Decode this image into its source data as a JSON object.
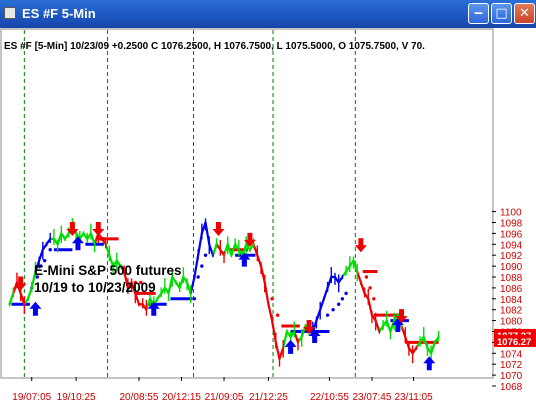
{
  "window": {
    "title": "ES #F 5-Min",
    "minimize_glyph": "‒",
    "maximize_glyph": "□",
    "close_glyph": "✕"
  },
  "info_line": "ES #F [5-Min] 10/23/09 +0.2500 C 1076.2500, H 1076.7500, L 1075.5000, O 1075.7500, V 70.",
  "annotation": {
    "line1": "E-Mini S&P 500 futures",
    "line2": "10/19 to 10/23/2009"
  },
  "colors": {
    "up_trend": "#0000ee",
    "down_trend": "#ee0000",
    "neutral": "#00dd00",
    "session_divider": "#008000",
    "axis_labels": "#cc0000"
  },
  "chart_data": {
    "type": "line",
    "ylim": [
      1068,
      1100
    ],
    "yticks": [
      1068,
      1070,
      1072,
      1074,
      1076,
      1078,
      1080,
      1082,
      1084,
      1086,
      1088,
      1090,
      1092,
      1094,
      1096,
      1098,
      1100
    ],
    "xlim": [
      0,
      530
    ],
    "xtick_labels": [
      {
        "label": "19/07:05",
        "x": 30
      },
      {
        "label": "19/10:25",
        "x": 78
      },
      {
        "label": "20/08:55",
        "x": 146
      },
      {
        "label": "20/12:15",
        "x": 192
      },
      {
        "label": "21/09:05",
        "x": 238
      },
      {
        "label": "21/12:25",
        "x": 286
      },
      {
        "label": "22/10:55",
        "x": 352
      },
      {
        "label": "23/07:45",
        "x": 398
      },
      {
        "label": "23/11:05",
        "x": 443
      }
    ],
    "session_dividers": [
      22,
      112,
      205,
      291,
      380
    ],
    "price_points": [
      [
        6,
        1083,
        "g"
      ],
      [
        10,
        1085,
        "g"
      ],
      [
        14,
        1087,
        "r"
      ],
      [
        18,
        1085,
        "r"
      ],
      [
        22,
        1083,
        "r"
      ],
      [
        26,
        1084,
        "g"
      ],
      [
        30,
        1086,
        "g"
      ],
      [
        34,
        1089,
        "g"
      ],
      [
        38,
        1091,
        "b"
      ],
      [
        42,
        1093,
        "b"
      ],
      [
        46,
        1094,
        "b"
      ],
      [
        50,
        1095,
        "b"
      ],
      [
        54,
        1095,
        "g"
      ],
      [
        58,
        1094,
        "g"
      ],
      [
        62,
        1096,
        "g"
      ],
      [
        66,
        1095,
        "g"
      ],
      [
        70,
        1096,
        "g"
      ],
      [
        74,
        1097,
        "g"
      ],
      [
        78,
        1096,
        "g"
      ],
      [
        82,
        1095,
        "g"
      ],
      [
        86,
        1096,
        "g"
      ],
      [
        90,
        1095,
        "g"
      ],
      [
        94,
        1096,
        "g"
      ],
      [
        98,
        1094,
        "g"
      ],
      [
        102,
        1096,
        "r"
      ],
      [
        106,
        1095,
        "r"
      ],
      [
        110,
        1094,
        "r"
      ],
      [
        114,
        1092,
        "g"
      ],
      [
        118,
        1090,
        "g"
      ],
      [
        122,
        1091,
        "g"
      ],
      [
        126,
        1090,
        "g"
      ],
      [
        130,
        1089,
        "r"
      ],
      [
        134,
        1086,
        "r"
      ],
      [
        138,
        1087,
        "r"
      ],
      [
        142,
        1085,
        "r"
      ],
      [
        146,
        1083,
        "r"
      ],
      [
        150,
        1083,
        "r"
      ],
      [
        154,
        1082,
        "r"
      ],
      [
        158,
        1084,
        "g"
      ],
      [
        162,
        1083,
        "g"
      ],
      [
        166,
        1084,
        "g"
      ],
      [
        170,
        1085,
        "g"
      ],
      [
        174,
        1086,
        "g"
      ],
      [
        178,
        1085,
        "g"
      ],
      [
        182,
        1088,
        "g"
      ],
      [
        186,
        1087,
        "g"
      ],
      [
        190,
        1086,
        "g"
      ],
      [
        194,
        1088,
        "g"
      ],
      [
        198,
        1087,
        "g"
      ],
      [
        202,
        1085,
        "g"
      ],
      [
        206,
        1088,
        "b"
      ],
      [
        210,
        1092,
        "b"
      ],
      [
        214,
        1096,
        "b"
      ],
      [
        218,
        1098,
        "b"
      ],
      [
        222,
        1094,
        "b"
      ],
      [
        226,
        1092,
        "b"
      ],
      [
        230,
        1094,
        "g"
      ],
      [
        234,
        1093,
        "r"
      ],
      [
        238,
        1092,
        "r"
      ],
      [
        242,
        1094,
        "g"
      ],
      [
        246,
        1092,
        "g"
      ],
      [
        250,
        1094,
        "g"
      ],
      [
        254,
        1093,
        "g"
      ],
      [
        258,
        1092,
        "g"
      ],
      [
        262,
        1094,
        "g"
      ],
      [
        266,
        1093,
        "g"
      ],
      [
        270,
        1094,
        "g"
      ],
      [
        274,
        1092,
        "r"
      ],
      [
        278,
        1090,
        "r"
      ],
      [
        282,
        1087,
        "r"
      ],
      [
        286,
        1083,
        "r"
      ],
      [
        290,
        1080,
        "r"
      ],
      [
        294,
        1076,
        "r"
      ],
      [
        298,
        1073,
        "r"
      ],
      [
        302,
        1075,
        "r"
      ],
      [
        306,
        1078,
        "g"
      ],
      [
        310,
        1077,
        "g"
      ],
      [
        314,
        1078,
        "g"
      ],
      [
        318,
        1076,
        "r"
      ],
      [
        322,
        1077,
        "g"
      ],
      [
        326,
        1079,
        "g"
      ],
      [
        330,
        1078,
        "g"
      ],
      [
        334,
        1078,
        "b"
      ],
      [
        338,
        1080,
        "b"
      ],
      [
        342,
        1082,
        "b"
      ],
      [
        346,
        1084,
        "b"
      ],
      [
        350,
        1086,
        "b"
      ],
      [
        354,
        1088,
        "b"
      ],
      [
        358,
        1088,
        "b"
      ],
      [
        362,
        1087,
        "b"
      ],
      [
        366,
        1088,
        "b"
      ],
      [
        370,
        1089,
        "g"
      ],
      [
        374,
        1090,
        "g"
      ],
      [
        378,
        1091,
        "g"
      ],
      [
        382,
        1089,
        "g"
      ],
      [
        386,
        1087,
        "r"
      ],
      [
        390,
        1085,
        "r"
      ],
      [
        394,
        1084,
        "r"
      ],
      [
        398,
        1081,
        "r"
      ],
      [
        402,
        1080,
        "r"
      ],
      [
        406,
        1078,
        "r"
      ],
      [
        410,
        1079,
        "g"
      ],
      [
        414,
        1080,
        "g"
      ],
      [
        418,
        1078,
        "g"
      ],
      [
        422,
        1080,
        "g"
      ],
      [
        426,
        1081,
        "g"
      ],
      [
        430,
        1079,
        "g"
      ],
      [
        434,
        1077,
        "r"
      ],
      [
        438,
        1075,
        "r"
      ],
      [
        442,
        1074,
        "r"
      ],
      [
        446,
        1075,
        "r"
      ],
      [
        450,
        1076,
        "g"
      ],
      [
        454,
        1077,
        "g"
      ],
      [
        458,
        1075,
        "g"
      ],
      [
        462,
        1074,
        "g"
      ],
      [
        466,
        1076,
        "g"
      ],
      [
        470,
        1077,
        "g"
      ]
    ],
    "stop_dots": [
      [
        30,
        1086,
        "b"
      ],
      [
        36,
        1088,
        "b"
      ],
      [
        40,
        1090,
        "b"
      ],
      [
        44,
        1091,
        "b"
      ],
      [
        50,
        1093,
        "b"
      ],
      [
        104,
        1095,
        "r"
      ],
      [
        108,
        1095,
        "r"
      ],
      [
        142,
        1087,
        "r"
      ],
      [
        148,
        1087,
        "r"
      ],
      [
        206,
        1084,
        "b"
      ],
      [
        210,
        1088,
        "b"
      ],
      [
        214,
        1090,
        "b"
      ],
      [
        218,
        1092,
        "b"
      ],
      [
        248,
        1093,
        "r"
      ],
      [
        254,
        1093,
        "r"
      ],
      [
        264,
        1094,
        "r"
      ],
      [
        290,
        1084,
        "r"
      ],
      [
        296,
        1081,
        "r"
      ],
      [
        350,
        1081,
        "b"
      ],
      [
        356,
        1082,
        "b"
      ],
      [
        362,
        1083,
        "b"
      ],
      [
        366,
        1084,
        "b"
      ],
      [
        370,
        1085,
        "b"
      ],
      [
        392,
        1088,
        "r"
      ],
      [
        396,
        1086,
        "r"
      ],
      [
        400,
        1084,
        "r"
      ]
    ],
    "level_bars": [
      {
        "x1": 8,
        "x2": 28,
        "y": 1083,
        "c": "b"
      },
      {
        "x1": 54,
        "x2": 74,
        "y": 1093,
        "c": "b"
      },
      {
        "x1": 88,
        "x2": 108,
        "y": 1094,
        "c": "b"
      },
      {
        "x1": 104,
        "x2": 124,
        "y": 1095,
        "c": "r"
      },
      {
        "x1": 142,
        "x2": 164,
        "y": 1085,
        "c": "r"
      },
      {
        "x1": 156,
        "x2": 176,
        "y": 1083,
        "c": "b"
      },
      {
        "x1": 180,
        "x2": 204,
        "y": 1084,
        "c": "b"
      },
      {
        "x1": 244,
        "x2": 264,
        "y": 1093,
        "c": "r"
      },
      {
        "x1": 250,
        "x2": 272,
        "y": 1092,
        "c": "b"
      },
      {
        "x1": 300,
        "x2": 320,
        "y": 1079,
        "c": "r"
      },
      {
        "x1": 310,
        "x2": 330,
        "y": 1078,
        "c": "b"
      },
      {
        "x1": 328,
        "x2": 352,
        "y": 1078,
        "c": "b"
      },
      {
        "x1": 388,
        "x2": 404,
        "y": 1089,
        "c": "r"
      },
      {
        "x1": 400,
        "x2": 430,
        "y": 1081,
        "c": "r"
      },
      {
        "x1": 418,
        "x2": 438,
        "y": 1080,
        "c": "b"
      },
      {
        "x1": 434,
        "x2": 470,
        "y": 1076,
        "c": "r"
      }
    ],
    "buy_arrows": [
      [
        34,
        1082
      ],
      [
        80,
        1094
      ],
      [
        162,
        1082
      ],
      [
        260,
        1091
      ],
      [
        310,
        1075
      ],
      [
        336,
        1077
      ],
      [
        426,
        1079
      ],
      [
        460,
        1072
      ]
    ],
    "sell_arrows": [
      [
        18,
        1087
      ],
      [
        74,
        1097
      ],
      [
        102,
        1097
      ],
      [
        232,
        1097
      ],
      [
        266,
        1095
      ],
      [
        330,
        1079
      ],
      [
        386,
        1094
      ],
      [
        430,
        1081
      ]
    ],
    "price_flags": [
      {
        "label": "1077.37",
        "value": 1077.37
      },
      {
        "label": "1076.27",
        "value": 1076.27
      }
    ]
  }
}
